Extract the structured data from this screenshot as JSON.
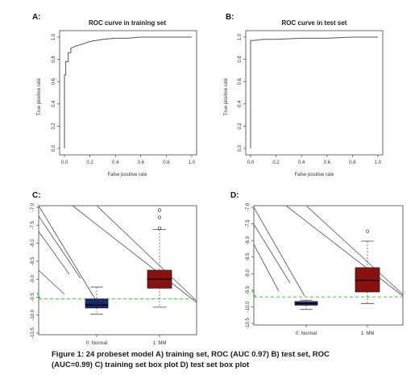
{
  "chart_data": [
    {
      "panel": "A:",
      "type": "line",
      "title": "ROC curve in training set",
      "xlabel": "False positive rate",
      "ylabel": "True positive rate",
      "xlim": [
        0,
        1
      ],
      "ylim": [
        0,
        1
      ],
      "xticks": [
        "0.0",
        "0.2",
        "0.4",
        "0.6",
        "0.8",
        "1.0"
      ],
      "yticks": [
        "0.0",
        "0.2",
        "0.4",
        "0.6",
        "0.8",
        "1.0"
      ],
      "series": [
        {
          "x": [
            0,
            0,
            0.01,
            0.01,
            0.03,
            0.03,
            0.05,
            0.05,
            0.09,
            0.12,
            0.2,
            0.3,
            0.4,
            0.5,
            0.6,
            0.7,
            0.8,
            1.0
          ],
          "y": [
            0,
            0.66,
            0.66,
            0.78,
            0.78,
            0.86,
            0.86,
            0.9,
            0.92,
            0.93,
            0.96,
            0.98,
            0.99,
            0.99,
            1.0,
            1.0,
            1.0,
            1.0
          ]
        }
      ]
    },
    {
      "panel": "B:",
      "type": "line",
      "title": "ROC curve in test set",
      "xlabel": "False positive rate",
      "ylabel": "True positive rate",
      "xlim": [
        0,
        1
      ],
      "ylim": [
        0,
        1
      ],
      "xticks": [
        "0.0",
        "0.2",
        "0.4",
        "0.6",
        "0.8",
        "1.0"
      ],
      "yticks": [
        "0.0",
        "0.2",
        "0.4",
        "0.6",
        "0.8",
        "1.0"
      ],
      "series": [
        {
          "x": [
            0,
            0,
            0.03,
            0.1,
            0.2,
            0.4,
            0.6,
            0.8,
            1.0
          ],
          "y": [
            0,
            0.97,
            0.97,
            0.98,
            0.98,
            0.99,
            0.99,
            1.0,
            1.0
          ]
        }
      ]
    },
    {
      "panel": "C:",
      "type": "box",
      "categories": [
        "0: Normal",
        "1: MM"
      ],
      "ylim": [
        -10.5,
        -7.0
      ],
      "yticks": [
        "-7.0",
        "-7.5",
        "-8.0",
        "-8.5",
        "-9.0",
        "-9.5",
        "-10.0",
        "-10.5"
      ],
      "boxes": [
        {
          "name": "0: Normal",
          "color": "#1a2a6e",
          "whisker_low": -9.97,
          "q1": -9.8,
          "median": -9.72,
          "q3": -9.55,
          "whisker_high": -9.22,
          "outliers": []
        },
        {
          "name": "1: MM",
          "color": "#8b1010",
          "whisker_low": -9.78,
          "q1": -9.25,
          "median": -9.0,
          "q3": -8.75,
          "whisker_high": -7.62,
          "outliers": [
            -7.08,
            -7.28,
            -7.58
          ]
        }
      ],
      "threshold": -9.55,
      "threshold_color": "#33cc33"
    },
    {
      "panel": "D:",
      "type": "box",
      "categories": [
        "0: Normal",
        "1: MM"
      ],
      "ylim": [
        -10.5,
        -7.0
      ],
      "yticks": [
        "-7.0",
        "-7.5",
        "-8.0",
        "-8.5",
        "-9.0",
        "-9.5",
        "-10.0",
        "-10.5"
      ],
      "boxes": [
        {
          "name": "0: Normal",
          "color": "#1a2a6e",
          "whisker_low": -10.08,
          "q1": -9.95,
          "median": -9.9,
          "q3": -9.84,
          "whisker_high": -9.8,
          "outliers": []
        },
        {
          "name": "1: MM",
          "color": "#8b1010",
          "whisker_low": -9.9,
          "q1": -9.55,
          "median": -9.2,
          "q3": -8.82,
          "whisker_high": -8.02,
          "outliers": [
            -7.72
          ]
        }
      ],
      "threshold": -9.7,
      "threshold_color": "#33cc33"
    }
  ],
  "caption": {
    "line1": "Figure 1: 24 probeset model A) training set, ROC (AUC 0.97)  B) test set, ROC",
    "line2": "(AUC=0.99) C) training set box plot D) test set box plot"
  }
}
